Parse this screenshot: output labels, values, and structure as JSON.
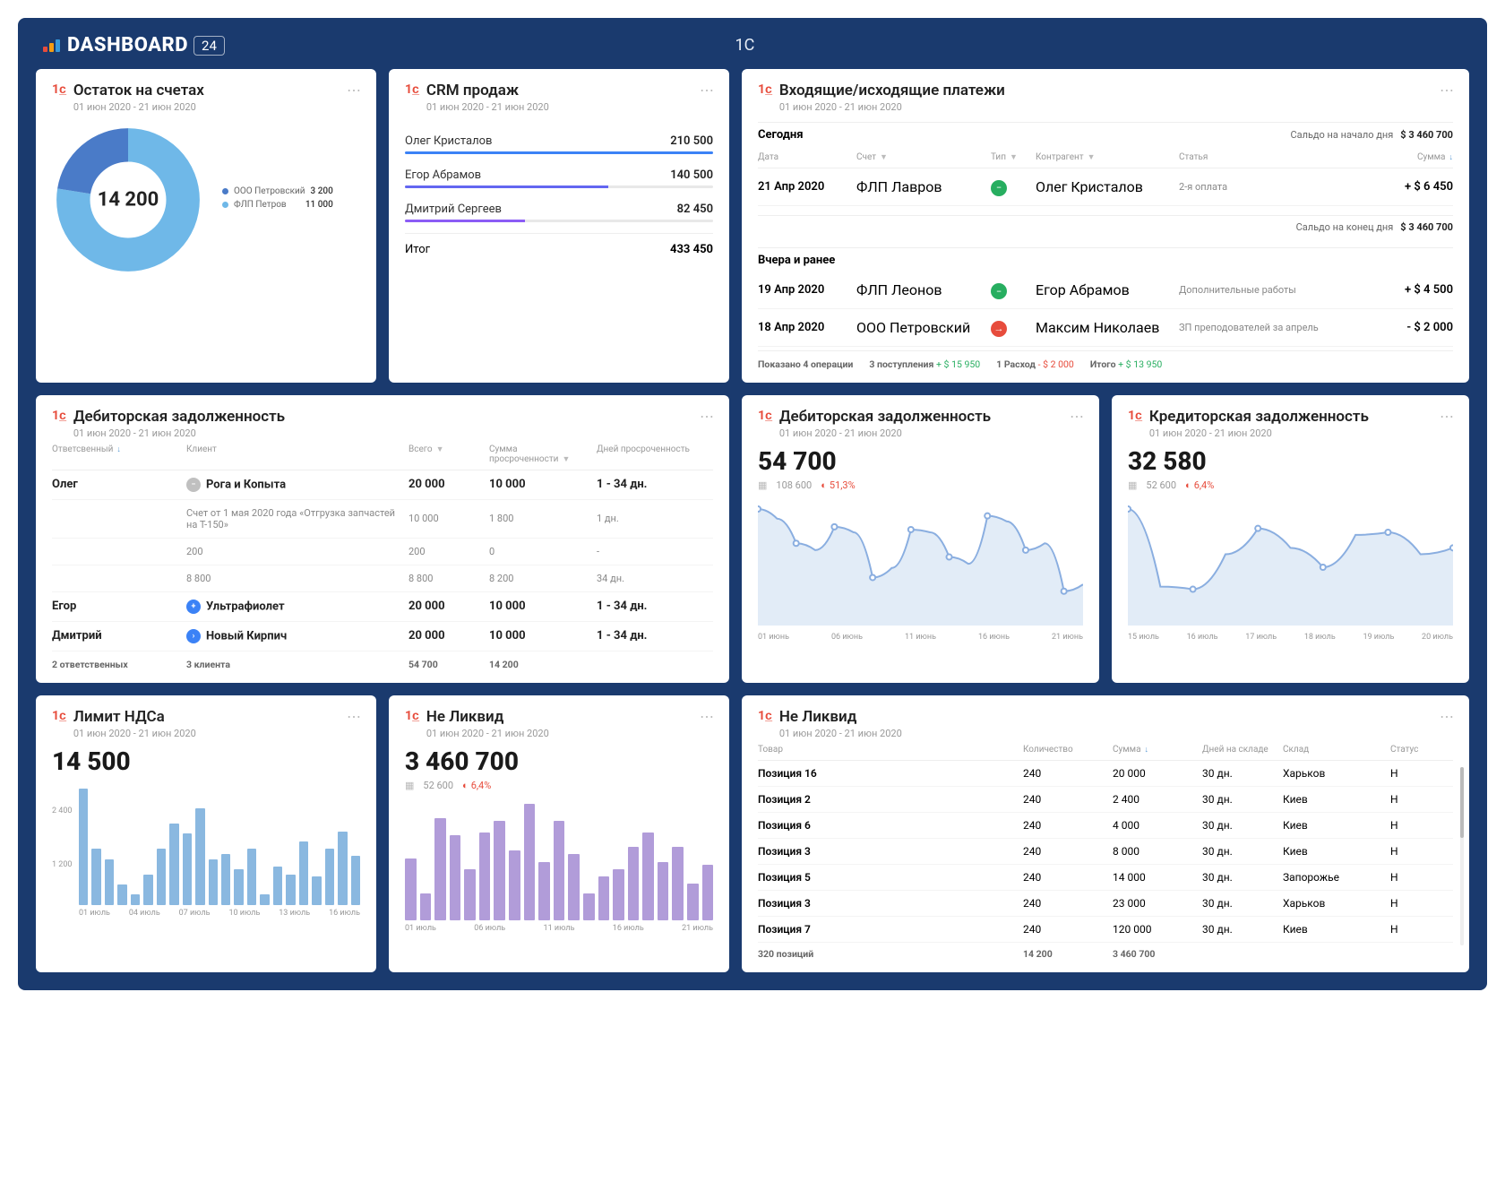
{
  "header": {
    "brand": "DASHBOARD",
    "badge": "24",
    "center": "1C"
  },
  "balance": {
    "title": "Остаток на счетах",
    "period": "01 июн 2020 - 21 июн 2020",
    "type": "donut",
    "center_value": "14 200",
    "legend": [
      {
        "label": "ООО Петровский",
        "value": "3 200",
        "color": "#4a7bc8"
      },
      {
        "label": "ФЛП Петров",
        "value": "11 000",
        "color": "#6fb8e8"
      }
    ],
    "donut": {
      "stroke_width": 22,
      "segments": [
        {
          "color": "#6fb8e8",
          "fraction": 0.775
        },
        {
          "color": "#4a7bc8",
          "fraction": 0.225
        }
      ]
    }
  },
  "crm": {
    "title": "CRM продаж",
    "period": "01 июн 2020 - 21 июн 2020",
    "rows": [
      {
        "name": "Олег Кристалов",
        "value": "210 500",
        "pct": 100,
        "color": "#3b82f6"
      },
      {
        "name": "Егор Абрамов",
        "value": "140 500",
        "pct": 66,
        "color": "#6366f1"
      },
      {
        "name": "Дмитрий Сергеев",
        "value": "82 450",
        "pct": 39,
        "color": "#8b5cf6"
      }
    ],
    "total_label": "Итог",
    "total_value": "433 450"
  },
  "payments": {
    "title": "Входящие/исходящие платежи",
    "period": "01 июн 2020 - 21 июн 2020",
    "today_label": "Сегодня",
    "saldo_start_label": "Сальдо на начало дня",
    "saldo_start": "$ 3 460 700",
    "saldo_end_label": "Сальдо на конец дня",
    "saldo_end": "$ 3 460 700",
    "yesterday_label": "Вчера и ранее",
    "columns": {
      "date": "Дата",
      "account": "Счет",
      "type": "Тип",
      "counterparty": "Контрагент",
      "article": "Статья",
      "amount": "Сумма"
    },
    "today_rows": [
      {
        "date": "21 Апр 2020",
        "account": "ФЛП Лавров",
        "type_color": "#27ae60",
        "type_symbol": "−",
        "counterparty": "Олег Кристалов",
        "article": "2-я оплата",
        "amount": "+ $ 6 450"
      }
    ],
    "yesterday_rows": [
      {
        "date": "19 Апр 2020",
        "account": "ФЛП Леонов",
        "type_color": "#27ae60",
        "type_symbol": "−",
        "counterparty": "Егор Абрамов",
        "article": "Дополнительные работы",
        "amount": "+ $ 4 500"
      },
      {
        "date": "18 Апр 2020",
        "account": "ООО Петровский",
        "type_color": "#e74c3c",
        "type_symbol": "→",
        "counterparty": "Максим Николаев",
        "article": "ЗП преподователей за апрель",
        "amount": "- $ 2 000"
      }
    ],
    "footer": {
      "ops": "Показано 4 операции",
      "in_label": "3 поступления",
      "in_val": "+ $ 15 950",
      "out_label": "1 Расход",
      "out_val": "- $ 2 000",
      "total_label": "Итого",
      "total_val": "+ $ 13 950"
    }
  },
  "debt_table": {
    "title": "Дебиторская задолженность",
    "period": "01 июн 2020 - 21 июн 2020",
    "columns": {
      "resp": "Ответсвенный",
      "client": "Клиент",
      "total": "Всего",
      "overdue_sum": "Сумма просроченности",
      "overdue_days": "Дней просроченность"
    },
    "rows": [
      {
        "resp": "Олег",
        "client": "Рога и Копыта",
        "icon_color": "#c0c0c0",
        "icon_sym": "−",
        "total": "20 000",
        "sum": "10 000",
        "days": "1 - 34 дн.",
        "bold": true
      },
      {
        "resp": "",
        "client": "Счет от 1 мая 2020 года «Отгрузка запчастей на Т-150»",
        "total": "10 000",
        "sum": "1 800",
        "days": "1 дн.",
        "sub": true
      },
      {
        "resp": "",
        "client": "200",
        "total": "200",
        "sum": "0",
        "days": "-",
        "sub": true
      },
      {
        "resp": "",
        "client": "8 800",
        "total": "8 800",
        "sum": "8 200",
        "days": "34 дн.",
        "sub": true
      },
      {
        "resp": "Егор",
        "client": "Ультрафиолет",
        "icon_color": "#3b82f6",
        "icon_sym": "+",
        "total": "20 000",
        "sum": "10 000",
        "days": "1 - 34 дн.",
        "bold": true
      },
      {
        "resp": "Дмитрий",
        "client": "Новый Кирпич",
        "icon_color": "#3b82f6",
        "icon_sym": "›",
        "total": "20 000",
        "sum": "10 000",
        "days": "1 - 34 дн.",
        "bold": true
      }
    ],
    "footer": {
      "resp": "2 ответственных",
      "client": "3 клиента",
      "total": "54 700",
      "sum": "14 200"
    }
  },
  "debt_chart": {
    "title": "Дебиторская задолженность",
    "period": "01 июн 2020 - 21 июн 2020",
    "value": "54 700",
    "sub_val": "108 600",
    "pct": "51,3%",
    "type": "area",
    "color": "#8aaee0",
    "fill": "#cfe0f2",
    "points": [
      85,
      78,
      60,
      55,
      72,
      68,
      35,
      42,
      70,
      68,
      50,
      45,
      80,
      76,
      55,
      60,
      25,
      30
    ],
    "x_labels": [
      "01 июнь",
      "06 июнь",
      "11 июнь",
      "16 июнь",
      "21 июнь"
    ]
  },
  "credit_chart": {
    "title": "Кредиторская задолженность",
    "period": "01 июн 2020 - 21 июн 2020",
    "value": "32 580",
    "sub_val": "52 600",
    "pct": "6,4%",
    "type": "area",
    "color": "#8aaee0",
    "fill": "#cfe0f2",
    "points": [
      90,
      30,
      28,
      55,
      75,
      60,
      45,
      70,
      72,
      55,
      60
    ],
    "x_labels": [
      "15 июль",
      "16 июль",
      "17 июль",
      "18 июль",
      "19 июль",
      "20 июль"
    ]
  },
  "vat": {
    "title": "Лимит НДСа",
    "period": "01 июн 2020 - 21 июн 2020",
    "value": "14 500",
    "type": "bar",
    "bar_color": "#8ab8e0",
    "ticks": [
      "2 400",
      "1 200"
    ],
    "bars": [
      115,
      55,
      45,
      20,
      10,
      30,
      55,
      80,
      70,
      95,
      45,
      50,
      35,
      55,
      10,
      38,
      30,
      62,
      28,
      55,
      72,
      48
    ],
    "x_labels": [
      "01 июль",
      "04 июль",
      "07 июль",
      "10 июль",
      "13 июль",
      "16 июль"
    ]
  },
  "illiquid_chart": {
    "title": "Не Ликвид",
    "period": "01 июн 2020 - 21 июн 2020",
    "value": "3 460 700",
    "sub_val": "52 600",
    "pct": "6,4%",
    "type": "bar",
    "bar_color": "#b19cd9",
    "bars": [
      42,
      18,
      70,
      58,
      35,
      60,
      68,
      48,
      80,
      40,
      68,
      45,
      18,
      30,
      35,
      50,
      60,
      40,
      50,
      25,
      38
    ],
    "x_labels": [
      "01 июль",
      "06 июль",
      "11 июль",
      "16 июль",
      "21 июль"
    ]
  },
  "illiquid_table": {
    "title": "Не Ликвид",
    "period": "01 июн 2020 - 21 июн 2020",
    "columns": {
      "item": "Товар",
      "qty": "Количество",
      "sum": "Сумма",
      "days": "Дней на складе",
      "wh": "Склад",
      "status": "Статус"
    },
    "rows": [
      {
        "item": "Позиция 16",
        "qty": "240",
        "sum": "20 000",
        "days": "30 дн.",
        "wh": "Харьков",
        "status": "Н"
      },
      {
        "item": "Позиция 2",
        "qty": "240",
        "sum": "2 400",
        "days": "30 дн.",
        "wh": "Киев",
        "status": "Н"
      },
      {
        "item": "Позиция 6",
        "qty": "240",
        "sum": "4 000",
        "days": "30 дн.",
        "wh": "Киев",
        "status": "Н"
      },
      {
        "item": "Позиция 3",
        "qty": "240",
        "sum": "8 000",
        "days": "30 дн.",
        "wh": "Киев",
        "status": "Н"
      },
      {
        "item": "Позиция 5",
        "qty": "240",
        "sum": "14 000",
        "days": "30 дн.",
        "wh": "Запорожье",
        "status": "Н"
      },
      {
        "item": "Позиция 3",
        "qty": "240",
        "sum": "23 000",
        "days": "30 дн.",
        "wh": "Харьков",
        "status": "Н"
      },
      {
        "item": "Позиция 7",
        "qty": "240",
        "sum": "120 000",
        "days": "30 дн.",
        "wh": "Киев",
        "status": "Н"
      }
    ],
    "footer": {
      "item": "320 позиций",
      "qty": "14 200",
      "sum": "3 460 700"
    }
  }
}
